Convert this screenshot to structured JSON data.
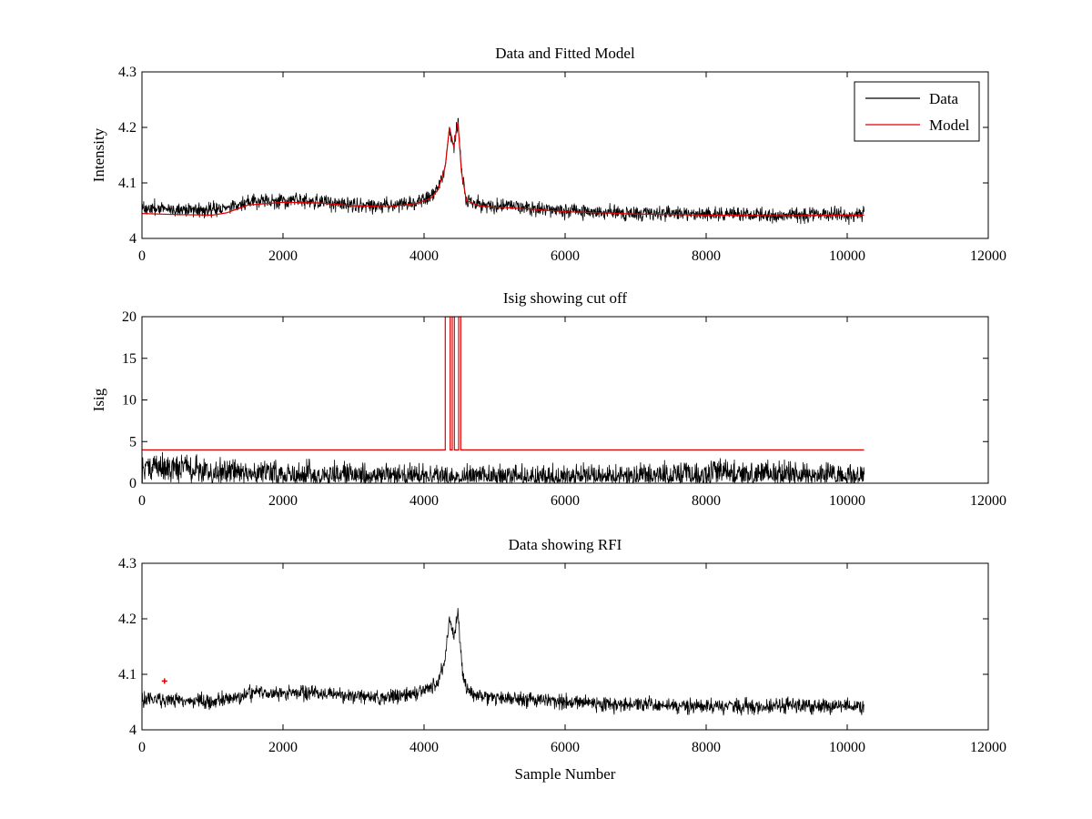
{
  "figure": {
    "background": "#ffffff"
  },
  "colors": {
    "data": "#000000",
    "model": "#e00000",
    "axis": "#000000"
  },
  "chart_data": [
    {
      "type": "line",
      "title": "Data and Fitted Model",
      "xlabel": "",
      "ylabel": "Intensity",
      "xlim": [
        0,
        12000
      ],
      "ylim": [
        4,
        4.3
      ],
      "xticks": [
        0,
        2000,
        4000,
        6000,
        8000,
        10000,
        12000
      ],
      "yticks": [
        4,
        4.1,
        4.2,
        4.3
      ],
      "ytick_labels": [
        "4",
        "4.1",
        "4.2",
        "4.3"
      ],
      "legend": {
        "position": "top-right",
        "entries": [
          "Data",
          "Model"
        ]
      },
      "n_samples": 10240,
      "series": [
        {
          "name": "Data",
          "color": "#000000",
          "kind": "noisy",
          "noise_amplitude": 0.012,
          "baseline": [
            [
              0,
              4.055
            ],
            [
              500,
              4.053
            ],
            [
              1000,
              4.052
            ],
            [
              1300,
              4.057
            ],
            [
              1500,
              4.066
            ],
            [
              2000,
              4.067
            ],
            [
              2500,
              4.066
            ],
            [
              3000,
              4.061
            ],
            [
              3500,
              4.059
            ],
            [
              3900,
              4.065
            ],
            [
              4100,
              4.075
            ],
            [
              4200,
              4.09
            ],
            [
              4300,
              4.13
            ],
            [
              4360,
              4.2
            ],
            [
              4420,
              4.165
            ],
            [
              4480,
              4.215
            ],
            [
              4530,
              4.12
            ],
            [
              4600,
              4.07
            ],
            [
              4800,
              4.06
            ],
            [
              5500,
              4.055
            ],
            [
              6000,
              4.05
            ],
            [
              7000,
              4.045
            ],
            [
              8000,
              4.043
            ],
            [
              9000,
              4.042
            ],
            [
              10240,
              4.043
            ]
          ]
        },
        {
          "name": "Model",
          "color": "#e00000",
          "kind": "smooth",
          "points": [
            [
              0,
              4.045
            ],
            [
              500,
              4.043
            ],
            [
              1000,
              4.042
            ],
            [
              1200,
              4.046
            ],
            [
              1500,
              4.06
            ],
            [
              2000,
              4.065
            ],
            [
              2500,
              4.064
            ],
            [
              3000,
              4.059
            ],
            [
              3500,
              4.057
            ],
            [
              3900,
              4.063
            ],
            [
              4100,
              4.073
            ],
            [
              4200,
              4.088
            ],
            [
              4300,
              4.13
            ],
            [
              4360,
              4.2
            ],
            [
              4420,
              4.165
            ],
            [
              4480,
              4.21
            ],
            [
              4530,
              4.12
            ],
            [
              4600,
              4.068
            ],
            [
              4800,
              4.058
            ],
            [
              5500,
              4.053
            ],
            [
              6000,
              4.048
            ],
            [
              7000,
              4.044
            ],
            [
              8000,
              4.042
            ],
            [
              9000,
              4.041
            ],
            [
              10240,
              4.042
            ]
          ]
        }
      ]
    },
    {
      "type": "line",
      "title": "Isig showing cut off",
      "xlabel": "",
      "ylabel": "Isig",
      "xlim": [
        0,
        12000
      ],
      "ylim": [
        0,
        20
      ],
      "xticks": [
        0,
        2000,
        4000,
        6000,
        8000,
        10000,
        12000
      ],
      "yticks": [
        0,
        5,
        10,
        15,
        20
      ],
      "ytick_labels": [
        "0",
        "5",
        "10",
        "15",
        "20"
      ],
      "n_samples": 10240,
      "series": [
        {
          "name": "Isig",
          "color": "#000000",
          "kind": "noisy-positive",
          "baseline": [
            [
              0,
              2.0
            ],
            [
              1500,
              1.2
            ],
            [
              3000,
              0.8
            ],
            [
              6000,
              0.7
            ],
            [
              8500,
              1.1
            ],
            [
              10240,
              0.6
            ]
          ],
          "noise_amplitude": 1.3
        },
        {
          "name": "Cut off",
          "color": "#e00000",
          "kind": "step",
          "points": [
            [
              0,
              4
            ],
            [
              4300,
              4
            ],
            [
              4300,
              20
            ],
            [
              4370,
              20
            ],
            [
              4370,
              4
            ],
            [
              4400,
              4
            ],
            [
              4400,
              20
            ],
            [
              4430,
              20
            ],
            [
              4430,
              4
            ],
            [
              4490,
              4
            ],
            [
              4490,
              20
            ],
            [
              4520,
              20
            ],
            [
              4520,
              4
            ],
            [
              10240,
              4
            ]
          ]
        }
      ]
    },
    {
      "type": "line",
      "title": "Data showing RFI",
      "xlabel": "Sample Number",
      "ylabel": "",
      "xlim": [
        0,
        12000
      ],
      "ylim": [
        4,
        4.3
      ],
      "xticks": [
        0,
        2000,
        4000,
        6000,
        8000,
        10000,
        12000
      ],
      "yticks": [
        4,
        4.1,
        4.2,
        4.3
      ],
      "ytick_labels": [
        "4",
        "4.1",
        "4.2",
        "4.3"
      ],
      "n_samples": 10240,
      "series": [
        {
          "name": "Data",
          "color": "#000000",
          "kind": "noisy",
          "noise_amplitude": 0.012,
          "baseline": [
            [
              0,
              4.055
            ],
            [
              500,
              4.053
            ],
            [
              1000,
              4.052
            ],
            [
              1300,
              4.057
            ],
            [
              1500,
              4.066
            ],
            [
              2000,
              4.067
            ],
            [
              2500,
              4.066
            ],
            [
              3000,
              4.061
            ],
            [
              3500,
              4.059
            ],
            [
              3900,
              4.065
            ],
            [
              4100,
              4.075
            ],
            [
              4200,
              4.09
            ],
            [
              4300,
              4.13
            ],
            [
              4360,
              4.2
            ],
            [
              4420,
              4.165
            ],
            [
              4480,
              4.215
            ],
            [
              4530,
              4.12
            ],
            [
              4600,
              4.07
            ],
            [
              4800,
              4.06
            ],
            [
              5500,
              4.055
            ],
            [
              6000,
              4.05
            ],
            [
              7000,
              4.045
            ],
            [
              8000,
              4.043
            ],
            [
              9000,
              4.042
            ],
            [
              10240,
              4.043
            ]
          ]
        },
        {
          "name": "RFI",
          "color": "#e00000",
          "kind": "markers",
          "points": [
            [
              320,
              4.088
            ]
          ]
        }
      ]
    }
  ]
}
